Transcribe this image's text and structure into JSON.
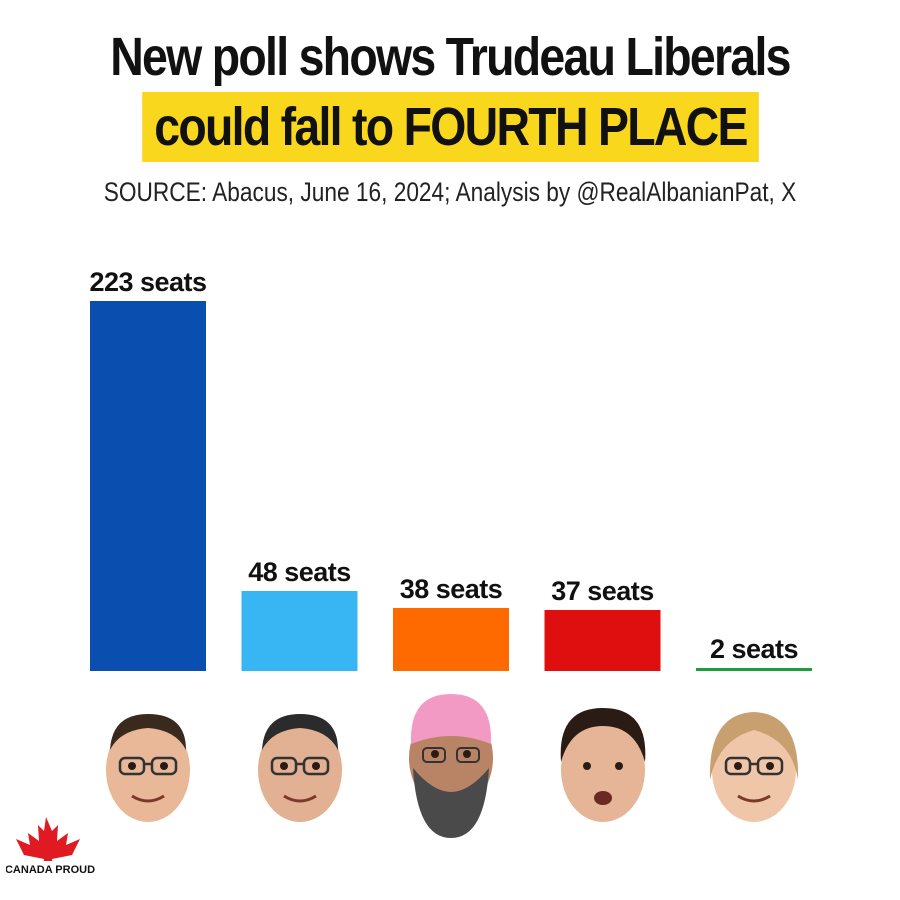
{
  "header": {
    "title_line1": "New poll shows Trudeau Liberals",
    "title_line2": "could fall to FOURTH PLACE",
    "source": "SOURCE: Abacus, June 16, 2024; Analysis by @RealAlbanianPat, X"
  },
  "chart_data": {
    "type": "bar",
    "title": "New poll shows Trudeau Liberals could fall to FOURTH PLACE",
    "subtitle": "SOURCE: Abacus, June 16, 2024; Analysis by @RealAlbanianPat, X",
    "xlabel": "",
    "ylabel": "",
    "values": [
      223,
      48,
      38,
      37,
      2
    ],
    "data_labels": [
      "223 seats",
      "48 seats",
      "38 seats",
      "37 seats",
      "2 seats"
    ],
    "colors": [
      "#0a4fb0",
      "#38b6f4",
      "#ff6a00",
      "#e00f0f",
      "#1f9d3e"
    ],
    "grid": false,
    "legend": "none",
    "ylim": [
      0,
      223
    ]
  },
  "avatars": [
    {
      "icon": "leader-portrait-1-icon",
      "skin": "#e8b898",
      "hair": "#3a2a1e"
    },
    {
      "icon": "leader-portrait-2-icon",
      "skin": "#e2b092",
      "hair": "#2b2b2b"
    },
    {
      "icon": "leader-portrait-3-icon",
      "skin": "#b98466",
      "hair": "#4a4a4a",
      "turban": "#f29ac4"
    },
    {
      "icon": "leader-portrait-4-icon",
      "skin": "#e6b496",
      "hair": "#2a1c14"
    },
    {
      "icon": "leader-portrait-5-icon",
      "skin": "#f0c6a8",
      "hair": "#c8a070"
    }
  ],
  "logo": {
    "text": "CANADA PROUD",
    "leaf_color": "#e01a22"
  }
}
